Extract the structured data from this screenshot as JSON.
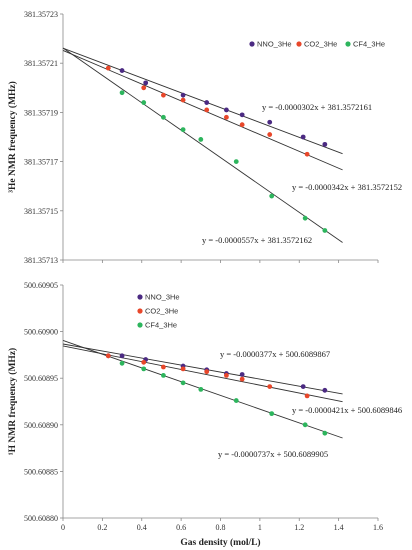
{
  "colors": {
    "NNO": "#4b2a82",
    "CO2": "#e8472a",
    "CF4": "#2db55d",
    "trend": "#333333"
  },
  "chart_data": [
    {
      "type": "scatter",
      "xlabel": "",
      "ylabel": "³He NMR frequency (MHz)",
      "xlim": [
        0,
        1.6
      ],
      "ylim": [
        381.35713,
        381.35723
      ],
      "yticks": [
        "381.35723",
        "381.35721",
        "381.35719",
        "381.35717",
        "381.35715",
        "381.35713"
      ],
      "xticks": [],
      "legend_position": "top-right",
      "series": [
        {
          "name": "NNO_3He",
          "color_key": "NNO",
          "x": [
            0.3,
            0.42,
            0.61,
            0.73,
            0.83,
            0.91,
            1.05,
            1.22,
            1.33
          ],
          "y": [
            381.357207,
            381.357202,
            381.357197,
            381.357194,
            381.357191,
            381.357189,
            381.357186,
            381.35718,
            381.357177
          ]
        },
        {
          "name": "CO2_3He",
          "color_key": "CO2",
          "x": [
            0.23,
            0.41,
            0.51,
            0.61,
            0.73,
            0.83,
            0.91,
            1.05,
            1.24
          ],
          "y": [
            381.357208,
            381.3572,
            381.357197,
            381.357195,
            381.357191,
            381.357188,
            381.357185,
            381.357181,
            381.357173
          ]
        },
        {
          "name": "CF4_3He",
          "color_key": "CF4",
          "x": [
            0.3,
            0.41,
            0.51,
            0.61,
            0.7,
            0.88,
            1.06,
            1.23,
            1.33
          ],
          "y": [
            381.357198,
            381.357194,
            381.357188,
            381.357183,
            381.357179,
            381.35717,
            381.357156,
            381.357147,
            381.357142
          ]
        }
      ],
      "trendlines": [
        {
          "color_key": "NNO",
          "slope": -3.02e-05,
          "intercept": 381.3572161,
          "x_range": [
            0,
            1.42
          ],
          "label": "y = -0.0000302x + 381.3572161"
        },
        {
          "color_key": "CO2",
          "slope": -3.42e-05,
          "intercept": 381.3572152,
          "x_range": [
            0,
            1.42
          ],
          "label": "y = -0.0000342x + 381.3572152"
        },
        {
          "color_key": "CF4",
          "slope": -5.57e-05,
          "intercept": 381.3572162,
          "x_range": [
            0,
            1.42
          ],
          "label": "y = -0.0000557x + 381.3572162"
        }
      ]
    },
    {
      "type": "scatter",
      "xlabel": "Gas density (mol/L)",
      "ylabel": "¹H NMR frequency (MHz)",
      "xlim": [
        0,
        1.6
      ],
      "ylim": [
        500.6088,
        500.60905
      ],
      "yticks": [
        "500.60905",
        "500.60900",
        "500.60895",
        "500.60890",
        "500.60885",
        "500.60880"
      ],
      "xticks": [
        "0",
        "0.2",
        "0.4",
        "0.6",
        "0.8",
        "1",
        "1.2",
        "1.4",
        "1.6"
      ],
      "legend_position": "top-left",
      "series": [
        {
          "name": "NNO_3He",
          "color_key": "NNO",
          "x": [
            0.23,
            0.3,
            0.42,
            0.61,
            0.73,
            0.83,
            0.91,
            1.22,
            1.33
          ],
          "y": [
            500.608974,
            500.608974,
            500.60897,
            500.608963,
            500.608959,
            500.608955,
            500.608954,
            500.608941,
            500.608937
          ]
        },
        {
          "name": "CO2_3He",
          "color_key": "CO2",
          "x": [
            0.23,
            0.41,
            0.51,
            0.61,
            0.73,
            0.83,
            0.91,
            1.05,
            1.24
          ],
          "y": [
            500.608974,
            500.608967,
            500.608962,
            500.60896,
            500.608957,
            500.608953,
            500.608949,
            500.608941,
            500.608931
          ]
        },
        {
          "name": "CF4_3He",
          "color_key": "CF4",
          "x": [
            0.3,
            0.41,
            0.51,
            0.61,
            0.7,
            0.88,
            1.06,
            1.23,
            1.33
          ],
          "y": [
            500.608966,
            500.60896,
            500.608953,
            500.608945,
            500.608938,
            500.608926,
            500.608912,
            500.6089,
            500.608891
          ]
        }
      ],
      "trendlines": [
        {
          "color_key": "NNO",
          "slope": -3.77e-05,
          "intercept": 500.6089867,
          "x_range": [
            0,
            1.42
          ],
          "label": "y = -0.0000377x + 500.6089867"
        },
        {
          "color_key": "CO2",
          "slope": -4.21e-05,
          "intercept": 500.6089846,
          "x_range": [
            0,
            1.42
          ],
          "label": "y = -0.0000421x + 500.6089846"
        },
        {
          "color_key": "CF4",
          "slope": -7.37e-05,
          "intercept": 500.6089905,
          "x_range": [
            0,
            1.42
          ],
          "label": "y = -0.0000737x + 500.6089905"
        }
      ]
    }
  ]
}
